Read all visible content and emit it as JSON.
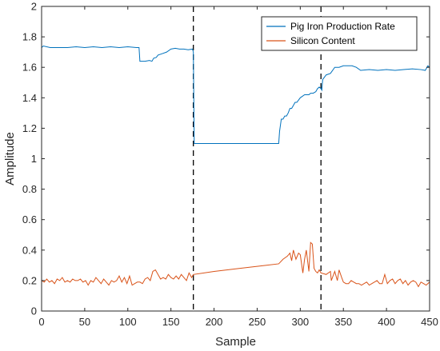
{
  "chart_data": {
    "type": "line",
    "xlabel": "Sample",
    "ylabel": "Amplitude",
    "xlim": [
      0,
      450
    ],
    "ylim": [
      0,
      2
    ],
    "xticks": [
      0,
      50,
      100,
      150,
      200,
      250,
      300,
      350,
      400,
      450
    ],
    "xtick_labels": [
      "0",
      "50",
      "100",
      "150",
      "200",
      "250",
      "300",
      "350",
      "400",
      "450"
    ],
    "yticks": [
      0,
      0.2,
      0.4,
      0.6,
      0.8,
      1.0,
      1.2,
      1.4,
      1.6,
      1.8,
      2.0
    ],
    "ytick_labels": [
      "0",
      "0.2",
      "0.4",
      "0.6",
      "0.8",
      "1",
      "1.2",
      "1.4",
      "1.6",
      "1.8",
      "2"
    ],
    "grid": false,
    "legend_position": "top-right",
    "vlines": [
      176,
      324
    ],
    "series": [
      {
        "name": "Pig Iron Production Rate",
        "color": "#0072BD",
        "x": [
          0,
          2,
          10,
          20,
          30,
          40,
          50,
          60,
          70,
          80,
          90,
          100,
          110,
          113,
          114,
          120,
          125,
          128,
          130,
          133,
          135,
          140,
          145,
          150,
          155,
          160,
          165,
          170,
          175,
          176,
          177,
          178,
          200,
          230,
          260,
          275,
          276,
          278,
          280,
          282,
          284,
          286,
          288,
          290,
          292,
          294,
          296,
          300,
          305,
          310,
          312,
          315,
          318,
          320,
          322,
          324,
          325,
          326,
          330,
          335,
          340,
          345,
          350,
          355,
          360,
          365,
          370,
          380,
          390,
          400,
          410,
          420,
          430,
          440,
          445,
          448,
          450
        ],
        "y": [
          1.73,
          1.74,
          1.73,
          1.73,
          1.73,
          1.735,
          1.73,
          1.735,
          1.73,
          1.735,
          1.73,
          1.735,
          1.73,
          1.73,
          1.64,
          1.64,
          1.645,
          1.64,
          1.66,
          1.665,
          1.68,
          1.69,
          1.7,
          1.72,
          1.725,
          1.72,
          1.72,
          1.715,
          1.72,
          1.7,
          1.1,
          1.1,
          1.1,
          1.1,
          1.1,
          1.1,
          1.18,
          1.26,
          1.26,
          1.28,
          1.28,
          1.3,
          1.33,
          1.33,
          1.35,
          1.37,
          1.37,
          1.4,
          1.42,
          1.42,
          1.43,
          1.43,
          1.44,
          1.46,
          1.47,
          1.46,
          1.45,
          1.52,
          1.55,
          1.56,
          1.6,
          1.6,
          1.61,
          1.61,
          1.61,
          1.6,
          1.58,
          1.585,
          1.58,
          1.585,
          1.58,
          1.585,
          1.59,
          1.585,
          1.58,
          1.61,
          1.6
        ]
      },
      {
        "name": "Silicon Content",
        "color": "#D95319",
        "x": [
          0,
          3,
          6,
          9,
          12,
          15,
          18,
          21,
          24,
          27,
          30,
          33,
          36,
          39,
          42,
          45,
          48,
          51,
          54,
          57,
          60,
          63,
          66,
          69,
          72,
          75,
          78,
          81,
          84,
          87,
          90,
          93,
          96,
          99,
          102,
          105,
          108,
          111,
          114,
          117,
          120,
          123,
          126,
          129,
          132,
          135,
          138,
          141,
          144,
          147,
          150,
          153,
          156,
          159,
          162,
          165,
          168,
          171,
          174,
          176,
          200,
          230,
          260,
          275,
          280,
          285,
          288,
          290,
          292,
          295,
          298,
          300,
          303,
          305,
          307,
          310,
          312,
          314,
          316,
          318,
          320,
          322,
          324,
          330,
          335,
          336,
          340,
          343,
          345,
          348,
          350,
          353,
          356,
          359,
          362,
          365,
          368,
          371,
          374,
          377,
          380,
          383,
          386,
          389,
          392,
          395,
          398,
          401,
          404,
          407,
          410,
          413,
          416,
          419,
          422,
          425,
          428,
          431,
          434,
          437,
          440,
          443,
          446,
          450
        ],
        "y": [
          0.2,
          0.19,
          0.21,
          0.19,
          0.2,
          0.18,
          0.21,
          0.2,
          0.22,
          0.19,
          0.2,
          0.19,
          0.21,
          0.2,
          0.2,
          0.21,
          0.19,
          0.2,
          0.17,
          0.2,
          0.19,
          0.22,
          0.2,
          0.18,
          0.21,
          0.19,
          0.17,
          0.2,
          0.19,
          0.2,
          0.23,
          0.19,
          0.22,
          0.18,
          0.23,
          0.17,
          0.18,
          0.19,
          0.19,
          0.18,
          0.21,
          0.22,
          0.2,
          0.26,
          0.27,
          0.24,
          0.21,
          0.22,
          0.21,
          0.24,
          0.22,
          0.21,
          0.23,
          0.21,
          0.24,
          0.22,
          0.2,
          0.25,
          0.22,
          0.24,
          0.26,
          0.28,
          0.3,
          0.31,
          0.34,
          0.36,
          0.38,
          0.33,
          0.4,
          0.34,
          0.38,
          0.37,
          0.25,
          0.34,
          0.4,
          0.26,
          0.45,
          0.44,
          0.28,
          0.26,
          0.25,
          0.27,
          0.25,
          0.24,
          0.26,
          0.2,
          0.26,
          0.2,
          0.27,
          0.22,
          0.19,
          0.18,
          0.18,
          0.2,
          0.19,
          0.18,
          0.18,
          0.17,
          0.18,
          0.19,
          0.17,
          0.18,
          0.19,
          0.2,
          0.18,
          0.18,
          0.24,
          0.18,
          0.2,
          0.21,
          0.18,
          0.2,
          0.21,
          0.18,
          0.2,
          0.17,
          0.19,
          0.2,
          0.19,
          0.16,
          0.19,
          0.18,
          0.17,
          0.19
        ]
      }
    ]
  }
}
